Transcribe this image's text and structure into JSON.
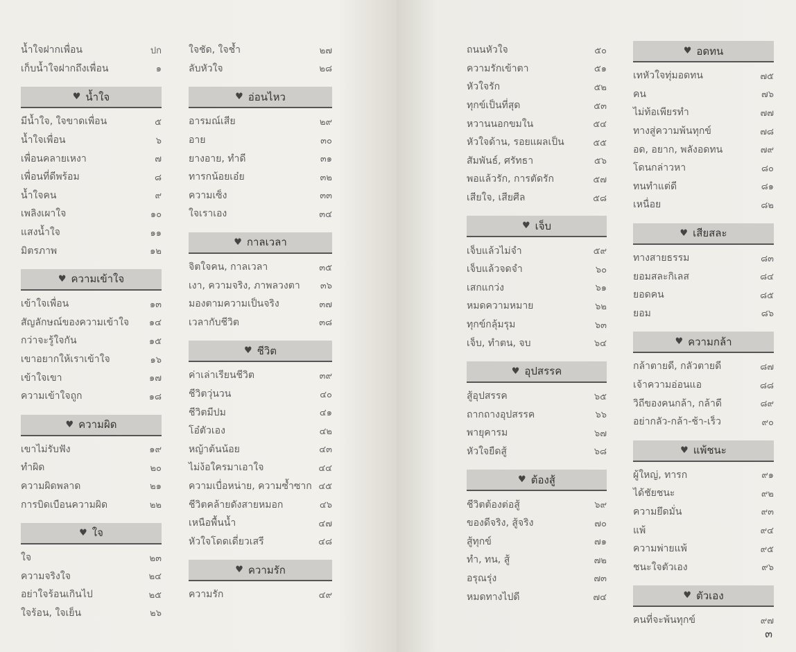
{
  "columns": [
    {
      "entries": [
        {
          "type": "item",
          "title": "น้ำใจฝากเพื่อน",
          "page": "ปก"
        },
        {
          "type": "item",
          "title": "เก็บน้ำใจฝากถึงเพื่อน",
          "page": "๑"
        },
        {
          "type": "header",
          "title": "น้ำใจ"
        },
        {
          "type": "item",
          "title": "มีน้ำใจ, ใจขาดเพื่อน",
          "page": "๕"
        },
        {
          "type": "item",
          "title": "น้ำใจเพื่อน",
          "page": "๖"
        },
        {
          "type": "item",
          "title": "เพื่อนคลายเหงา",
          "page": "๗"
        },
        {
          "type": "item",
          "title": "เพื่อนที่ดีพร้อม",
          "page": "๘"
        },
        {
          "type": "item",
          "title": "น้ำใจคน",
          "page": "๙"
        },
        {
          "type": "item",
          "title": "เพลิงเผาใจ",
          "page": "๑๐"
        },
        {
          "type": "item",
          "title": "แสงน้ำใจ",
          "page": "๑๑"
        },
        {
          "type": "item",
          "title": "มิตรภาพ",
          "page": "๑๒"
        },
        {
          "type": "header",
          "title": "ความเข้าใจ"
        },
        {
          "type": "item",
          "title": "เข้าใจเพื่อน",
          "page": "๑๓"
        },
        {
          "type": "item",
          "title": "สัญลักษณ์ของความเข้าใจ",
          "page": "๑๔"
        },
        {
          "type": "item",
          "title": "กว่าจะรู้ใจกัน",
          "page": "๑๕"
        },
        {
          "type": "item",
          "title": "เขาอยากให้เราเข้าใจ",
          "page": "๑๖"
        },
        {
          "type": "item",
          "title": "เข้าใจเขา",
          "page": "๑๗"
        },
        {
          "type": "item",
          "title": "ความเข้าใจถูก",
          "page": "๑๘"
        },
        {
          "type": "header",
          "title": "ความผิด"
        },
        {
          "type": "item",
          "title": "เขาไม่รับฟัง",
          "page": "๑๙"
        },
        {
          "type": "item",
          "title": "ทำผิด",
          "page": "๒๐"
        },
        {
          "type": "item",
          "title": "ความผิดพลาด",
          "page": "๒๑"
        },
        {
          "type": "item",
          "title": "การบิดเบือนความผิด",
          "page": "๒๒"
        },
        {
          "type": "header",
          "title": "ใจ"
        },
        {
          "type": "item",
          "title": "ใจ",
          "page": "๒๓"
        },
        {
          "type": "item",
          "title": "ความจริงใจ",
          "page": "๒๔"
        },
        {
          "type": "item",
          "title": "อย่าใจร้อนเกินไป",
          "page": "๒๕"
        },
        {
          "type": "item",
          "title": "ใจร้อน, ใจเย็น",
          "page": "๒๖"
        }
      ]
    },
    {
      "entries": [
        {
          "type": "item",
          "title": "ใจชัด, ใจช้ำ",
          "page": "๒๗"
        },
        {
          "type": "item",
          "title": "ลับหัวใจ",
          "page": "๒๘"
        },
        {
          "type": "header",
          "title": "อ่อนไหว"
        },
        {
          "type": "item",
          "title": "อารมณ์เสีย",
          "page": "๒๙"
        },
        {
          "type": "item",
          "title": "อาย",
          "page": "๓๐"
        },
        {
          "type": "item",
          "title": "ยางอาย, ทำดี",
          "page": "๓๑"
        },
        {
          "type": "item",
          "title": "ทารกน้อยเอ๋ย",
          "page": "๓๒"
        },
        {
          "type": "item",
          "title": "ความเซ็ง",
          "page": "๓๓"
        },
        {
          "type": "item",
          "title": "ใจเราเอง",
          "page": "๓๔"
        },
        {
          "type": "header",
          "title": "กาลเวลา"
        },
        {
          "type": "item",
          "title": "จิตใจคน, กาลเวลา",
          "page": "๓๕"
        },
        {
          "type": "item",
          "title": "เงา, ความจริง, ภาพลวงตา",
          "page": "๓๖"
        },
        {
          "type": "item",
          "title": "มองตามความเป็นจริง",
          "page": "๓๗"
        },
        {
          "type": "item",
          "title": "เวลากับชีวิต",
          "page": "๓๘"
        },
        {
          "type": "header",
          "title": "ชีวิต"
        },
        {
          "type": "item",
          "title": "ค่าเล่าเรียนชีวิต",
          "page": "๓๙"
        },
        {
          "type": "item",
          "title": "ชีวิตวุ่นวน",
          "page": "๔๐"
        },
        {
          "type": "item",
          "title": "ชีวิตมีปม",
          "page": "๔๑"
        },
        {
          "type": "item",
          "title": "โอ๋ตัวเอง",
          "page": "๔๒"
        },
        {
          "type": "item",
          "title": "หญ้าต้นน้อย",
          "page": "๔๓"
        },
        {
          "type": "item",
          "title": "ไม่ง้อใครมาเอาใจ",
          "page": "๔๔"
        },
        {
          "type": "item",
          "title": "ความเบื่อหน่าย, ความซ้ำซาก",
          "page": "๔๕"
        },
        {
          "type": "item",
          "title": "ชีวิตคล้ายดังสายหมอก",
          "page": "๔๖"
        },
        {
          "type": "item",
          "title": "เหนือพื้นน้ำ",
          "page": "๔๗"
        },
        {
          "type": "item",
          "title": "หัวใจโดดเดี่ยวเสรี",
          "page": "๔๘"
        },
        {
          "type": "header",
          "title": "ความรัก"
        },
        {
          "type": "item",
          "title": "ความรัก",
          "page": "๔๙"
        }
      ]
    },
    {
      "entries": [
        {
          "type": "item",
          "title": "ถนนหัวใจ",
          "page": "๕๐"
        },
        {
          "type": "item",
          "title": "ความรักเข้าตา",
          "page": "๕๑"
        },
        {
          "type": "item",
          "title": "หัวใจรัก",
          "page": "๕๒"
        },
        {
          "type": "item",
          "title": "ทุกข์เป็นที่สุด",
          "page": "๕๓"
        },
        {
          "type": "item",
          "title": "หวานนอกขมใน",
          "page": "๕๔"
        },
        {
          "type": "item",
          "title": "หัวใจด้าน, รอยแผลเป็น",
          "page": "๕๕"
        },
        {
          "type": "item",
          "title": "สัมพันธ์, ศรัทธา",
          "page": "๕๖"
        },
        {
          "type": "item",
          "title": "พอแล้วรัก, การตัดรัก",
          "page": "๕๗"
        },
        {
          "type": "item",
          "title": "เสียใจ, เสียศีล",
          "page": "๕๘"
        },
        {
          "type": "header",
          "title": "เจ็บ"
        },
        {
          "type": "item",
          "title": "เจ็บแล้วไม่จำ",
          "page": "๕๙"
        },
        {
          "type": "item",
          "title": "เจ็บแล้วจดจำ",
          "page": "๖๐"
        },
        {
          "type": "item",
          "title": "เสกแกว่ง",
          "page": "๖๑"
        },
        {
          "type": "item",
          "title": "หมดความหมาย",
          "page": "๖๒"
        },
        {
          "type": "item",
          "title": "ทุกข์กลุ้มรุม",
          "page": "๖๓"
        },
        {
          "type": "item",
          "title": "เจ็บ, ทำตน, จบ",
          "page": "๖๔"
        },
        {
          "type": "header",
          "title": "อุปสรรค"
        },
        {
          "type": "item",
          "title": "สู้อุปสรรค",
          "page": "๖๕"
        },
        {
          "type": "item",
          "title": "ถากถางอุปสรรค",
          "page": "๖๖"
        },
        {
          "type": "item",
          "title": "พายุคารม",
          "page": "๖๗"
        },
        {
          "type": "item",
          "title": "หัวใจยืดสู้",
          "page": "๖๘"
        },
        {
          "type": "header",
          "title": "ต้องสู้"
        },
        {
          "type": "item",
          "title": "ชีวิตต้องต่อสู้",
          "page": "๖๙"
        },
        {
          "type": "item",
          "title": "ของดีจริง, สู้จริง",
          "page": "๗๐"
        },
        {
          "type": "item",
          "title": "สู้ทุกข์",
          "page": "๗๑"
        },
        {
          "type": "item",
          "title": "ทำ, ทน, สู้",
          "page": "๗๒"
        },
        {
          "type": "item",
          "title": "อรุณรุ่ง",
          "page": "๗๓"
        },
        {
          "type": "item",
          "title": "หมดทางไปดี",
          "page": "๗๔"
        }
      ]
    },
    {
      "entries": [
        {
          "type": "header",
          "title": "อดทน"
        },
        {
          "type": "item",
          "title": "เทหัวใจทุ่มอดทน",
          "page": "๗๕"
        },
        {
          "type": "item",
          "title": "คน",
          "page": "๗๖"
        },
        {
          "type": "item",
          "title": "ไม่ท้อเพียรทำ",
          "page": "๗๗"
        },
        {
          "type": "item",
          "title": "ทางสู่ความพ้นทุกข์",
          "page": "๗๘"
        },
        {
          "type": "item",
          "title": "อด, อยาก, พลังอดทน",
          "page": "๗๙"
        },
        {
          "type": "item",
          "title": "โดนกล่าวหา",
          "page": "๘๐"
        },
        {
          "type": "item",
          "title": "ทนทำแต่ดี",
          "page": "๘๑"
        },
        {
          "type": "item",
          "title": "เหนื่อย",
          "page": "๘๒"
        },
        {
          "type": "header",
          "title": "เสียสละ"
        },
        {
          "type": "item",
          "title": "ทางสายธรรม",
          "page": "๘๓"
        },
        {
          "type": "item",
          "title": "ยอมสละกิเลส",
          "page": "๘๔"
        },
        {
          "type": "item",
          "title": "ยอดคน",
          "page": "๘๕"
        },
        {
          "type": "item",
          "title": "ยอม",
          "page": "๘๖"
        },
        {
          "type": "header",
          "title": "ความกล้า"
        },
        {
          "type": "item",
          "title": "กล้าตายดี, กลัวตายดี",
          "page": "๘๗"
        },
        {
          "type": "item",
          "title": "เจ้าความอ่อนแอ",
          "page": "๘๘"
        },
        {
          "type": "item",
          "title": "วิถีของคนกล้า, กล้าดี",
          "page": "๘๙"
        },
        {
          "type": "item",
          "title": "อย่ากลัว-กล้า-ช้า-เร็ว",
          "page": "๙๐"
        },
        {
          "type": "header",
          "title": "แพ้ชนะ"
        },
        {
          "type": "item",
          "title": "ผู้ใหญ่, ทารก",
          "page": "๙๑"
        },
        {
          "type": "item",
          "title": "ได้ชัยชนะ",
          "page": "๙๒"
        },
        {
          "type": "item",
          "title": "ความยึดมั่น",
          "page": "๙๓"
        },
        {
          "type": "item",
          "title": "แพ้",
          "page": "๙๔"
        },
        {
          "type": "item",
          "title": "ความพ่ายแพ้",
          "page": "๙๕"
        },
        {
          "type": "item",
          "title": "ชนะใจตัวเอง",
          "page": "๙๖"
        },
        {
          "type": "header",
          "title": "ตัวเอง"
        },
        {
          "type": "item",
          "title": "คนที่จะพ้นทุกข์",
          "page": "๙๗"
        }
      ]
    }
  ],
  "header_icon": "heart-icon",
  "page_number": "๓"
}
